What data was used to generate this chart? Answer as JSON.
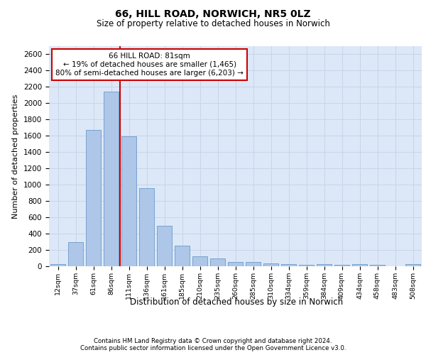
{
  "title_line1": "66, HILL ROAD, NORWICH, NR5 0LZ",
  "title_line2": "Size of property relative to detached houses in Norwich",
  "xlabel": "Distribution of detached houses by size in Norwich",
  "ylabel": "Number of detached properties",
  "footer_line1": "Contains HM Land Registry data © Crown copyright and database right 2024.",
  "footer_line2": "Contains public sector information licensed under the Open Government Licence v3.0.",
  "bar_labels": [
    "12sqm",
    "37sqm",
    "61sqm",
    "86sqm",
    "111sqm",
    "136sqm",
    "161sqm",
    "185sqm",
    "210sqm",
    "235sqm",
    "260sqm",
    "285sqm",
    "310sqm",
    "334sqm",
    "359sqm",
    "384sqm",
    "409sqm",
    "434sqm",
    "458sqm",
    "483sqm",
    "508sqm"
  ],
  "bar_values": [
    25,
    300,
    1670,
    2140,
    1590,
    960,
    500,
    250,
    120,
    100,
    50,
    50,
    35,
    30,
    20,
    30,
    20,
    30,
    20,
    0,
    25
  ],
  "bar_color": "#aec6e8",
  "bar_edge_color": "#5a8fc2",
  "property_line_x": 3.5,
  "annotation_text_line1": "66 HILL ROAD: 81sqm",
  "annotation_text_line2": "← 19% of detached houses are smaller (1,465)",
  "annotation_text_line3": "80% of semi-detached houses are larger (6,203) →",
  "annotation_box_color": "#ffffff",
  "annotation_box_edge": "#cc0000",
  "vline_color": "#cc0000",
  "grid_color": "#c8d4e8",
  "ylim": [
    0,
    2700
  ],
  "yticks": [
    0,
    200,
    400,
    600,
    800,
    1000,
    1200,
    1400,
    1600,
    1800,
    2000,
    2200,
    2400,
    2600
  ],
  "background_color": "#dce8f8",
  "fig_width": 6.0,
  "fig_height": 5.0,
  "fig_dpi": 100
}
